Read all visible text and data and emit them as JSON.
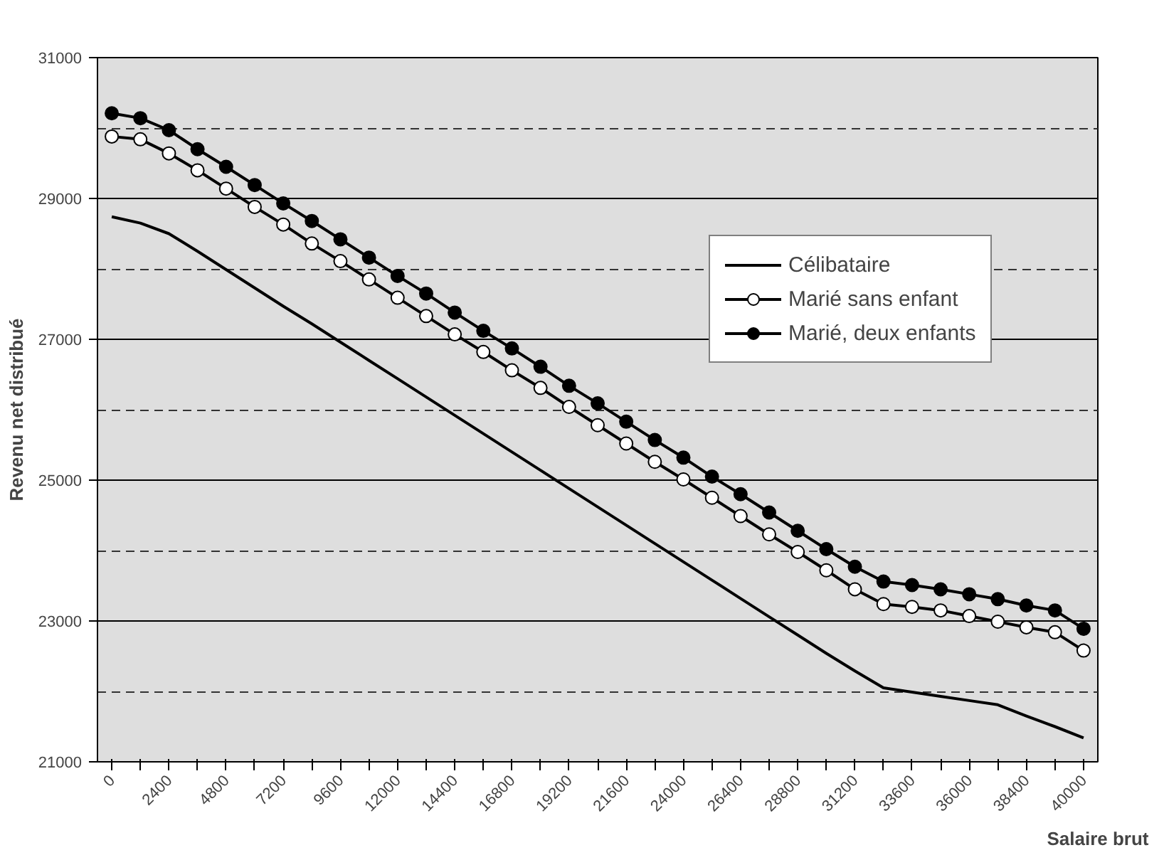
{
  "chart_data": {
    "type": "line",
    "xlabel": "Salaire brut",
    "ylabel": "Revenu net distribué",
    "categories": [
      "0",
      null,
      "2400",
      null,
      "4800",
      null,
      "7200",
      null,
      "9600",
      null,
      "12000",
      null,
      "14400",
      null,
      "16800",
      null,
      "19200",
      null,
      "21600",
      null,
      "24000",
      null,
      "26400",
      null,
      "28800",
      null,
      "31200",
      null,
      "33600",
      null,
      "36000",
      null,
      "38400",
      null,
      "40000"
    ],
    "ylim": [
      21000,
      31000
    ],
    "yticks": [
      21000,
      {
        "value": 22000,
        "label": null
      },
      23000,
      {
        "value": 24000,
        "label": null
      },
      25000,
      {
        "value": 26000,
        "label": null
      },
      27000,
      {
        "value": 28000,
        "label": null
      },
      29000,
      {
        "value": 30000,
        "label": null
      },
      31000
    ],
    "grid": "y",
    "legend": "top right",
    "series": [
      {
        "name": "Célibataire",
        "color": "#000000",
        "marker": "none",
        "values": [
          28740,
          28650,
          28500,
          28250,
          27990,
          27730,
          27470,
          27220,
          26960,
          26700,
          26440,
          26180,
          25920,
          25660,
          25400,
          25140,
          24880,
          24620,
          24360,
          24100,
          23840,
          23580,
          23320,
          23060,
          22800,
          22540,
          22290,
          22050,
          21990,
          21930,
          21870,
          21810,
          21650,
          21500,
          21340
        ]
      },
      {
        "name": "Marié sans enfant",
        "color": "#000000",
        "marker": "circle",
        "values": [
          29880,
          29840,
          29640,
          29400,
          29140,
          28880,
          28630,
          28360,
          28110,
          27850,
          27590,
          27330,
          27070,
          26820,
          26560,
          26310,
          26040,
          25780,
          25520,
          25260,
          25010,
          24750,
          24490,
          24230,
          23980,
          23720,
          23450,
          23240,
          23200,
          23150,
          23070,
          22990,
          22910,
          22840,
          22580
        ]
      },
      {
        "name": "Marié, deux enfants",
        "color": "#000000",
        "marker": "circle",
        "values": [
          30210,
          30140,
          29970,
          29700,
          29450,
          29190,
          28930,
          28680,
          28420,
          28160,
          27900,
          27650,
          27380,
          27120,
          26870,
          26610,
          26340,
          26090,
          25830,
          25570,
          25320,
          25050,
          24800,
          24540,
          24280,
          24020,
          23770,
          23560,
          23510,
          23450,
          23380,
          23310,
          23220,
          23150,
          22890
        ]
      }
    ]
  }
}
